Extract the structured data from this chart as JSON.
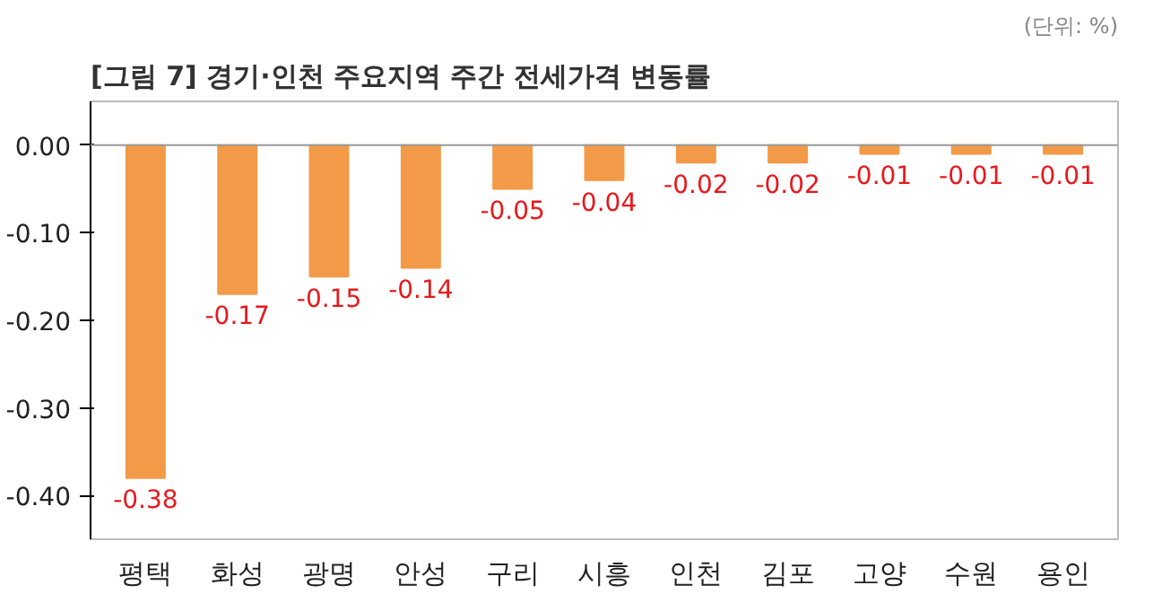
{
  "chart_data": {
    "type": "bar",
    "title": "[그림 7]  경기·인천 주요지역 주간 전세가격 변동률",
    "annotations": [
      "(단위: %)"
    ],
    "categories": [
      "평택",
      "화성",
      "광명",
      "안성",
      "구리",
      "시흥",
      "인천",
      "김포",
      "고양",
      "수원",
      "용인"
    ],
    "values": [
      -0.38,
      -0.17,
      -0.15,
      -0.14,
      -0.05,
      -0.04,
      -0.02,
      -0.02,
      -0.01,
      -0.01,
      -0.01
    ],
    "color": "#f39a48",
    "data_labels": true,
    "ylim": [
      -0.45,
      0.05
    ],
    "yticks": [
      {
        "value": 0,
        "label": "0.00"
      },
      {
        "value": -0.1,
        "label": "-0.10"
      },
      {
        "value": -0.2,
        "label": "-0.20"
      },
      {
        "value": -0.3,
        "label": "-0.30"
      },
      {
        "value": -0.4,
        "label": "-0.40"
      }
    ],
    "grid": false,
    "ref_lines": [
      {
        "axis": "y",
        "value": 0,
        "color": "#999999"
      }
    ]
  }
}
